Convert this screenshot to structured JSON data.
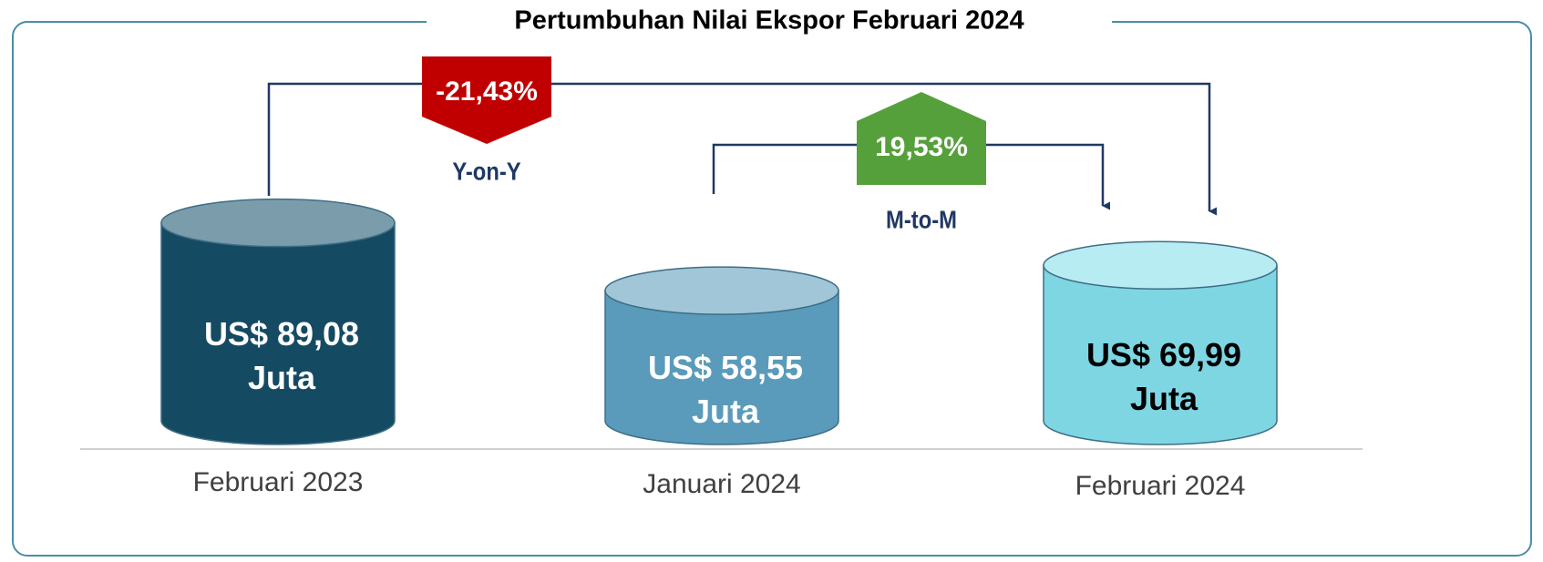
{
  "chart_data": {
    "type": "cylinder",
    "title": "Pertumbuhan Nilai Ekspor Februari 2024",
    "categories": [
      "Februari 2023",
      "Januari 2024",
      "Februari 2024"
    ],
    "values": [
      89.08,
      58.55,
      69.99
    ],
    "value_labels": [
      "US$ 89,08",
      "US$ 58,55",
      "US$ 69,99"
    ],
    "unit": "Juta",
    "colors": [
      "#154a63",
      "#5a9bbb",
      "#7fd6e3"
    ],
    "top_colors": [
      "#7b9cab",
      "#a0c6d8",
      "#b8ecf3"
    ],
    "label_colors": [
      "#ffffff",
      "#ffffff",
      "#000000"
    ],
    "comparisons": [
      {
        "name": "Y-on-Y",
        "value": -21.43,
        "label": "-21,43%",
        "color": "#c00000"
      },
      {
        "name": "M-to-M",
        "value": 19.53,
        "label": "19,53%",
        "color": "#56a03c"
      }
    ]
  }
}
